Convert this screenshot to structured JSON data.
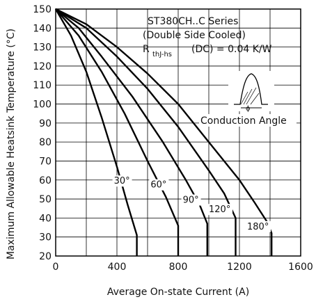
{
  "chart_data": {
    "type": "line",
    "title": "",
    "xlabel": "Average On-state Current (A)",
    "ylabel": "Maximum Allowable Heatsink Temperature (°C)",
    "xlim": [
      0,
      1600
    ],
    "ylim": [
      20,
      150
    ],
    "x_ticks": [
      "0",
      "400",
      "800",
      "1200",
      "1600"
    ],
    "y_ticks": [
      "20",
      "30",
      "40",
      "50",
      "60",
      "70",
      "80",
      "90",
      "100",
      "110",
      "120",
      "130",
      "140",
      "150"
    ],
    "grid": true,
    "annotations": {
      "series_title": "ST380CH..C Series",
      "cooling": "(Double Side Cooled)",
      "resistance_prefix": "R",
      "resistance_sub": "thJ-hs",
      "resistance_value": "(DC) = 0.04 K/W",
      "conduction_label": "Conduction Angle"
    },
    "series": [
      {
        "name": "30°",
        "label_at": [
          380,
          58
        ],
        "points": [
          [
            0,
            150
          ],
          [
            100,
            136
          ],
          [
            200,
            117
          ],
          [
            300,
            93
          ],
          [
            400,
            67
          ],
          [
            470,
            47
          ],
          [
            530,
            31
          ],
          [
            530,
            20
          ]
        ]
      },
      {
        "name": "60°",
        "label_at": [
          620,
          56
        ],
        "points": [
          [
            0,
            150
          ],
          [
            150,
            136
          ],
          [
            300,
            117
          ],
          [
            450,
            95
          ],
          [
            600,
            70
          ],
          [
            720,
            51
          ],
          [
            800,
            36
          ],
          [
            800,
            30
          ],
          [
            800,
            20
          ]
        ]
      },
      {
        "name": "90°",
        "label_at": [
          830,
          48
        ],
        "points": [
          [
            0,
            150
          ],
          [
            150,
            140
          ],
          [
            300,
            125
          ],
          [
            500,
            104
          ],
          [
            700,
            80
          ],
          [
            850,
            60
          ],
          [
            940,
            47
          ],
          [
            990,
            37
          ],
          [
            990,
            20
          ]
        ]
      },
      {
        "name": "120°",
        "label_at": [
          1000,
          43
        ],
        "points": [
          [
            0,
            150
          ],
          [
            200,
            140
          ],
          [
            400,
            125
          ],
          [
            600,
            108
          ],
          [
            800,
            88
          ],
          [
            1000,
            65
          ],
          [
            1100,
            53
          ],
          [
            1175,
            40
          ],
          [
            1175,
            30
          ],
          [
            1175,
            20
          ]
        ]
      },
      {
        "name": "180°",
        "label_at": [
          1250,
          34
        ],
        "points": [
          [
            0,
            150
          ],
          [
            200,
            142
          ],
          [
            400,
            130
          ],
          [
            600,
            116
          ],
          [
            800,
            100
          ],
          [
            1000,
            80
          ],
          [
            1200,
            60
          ],
          [
            1300,
            48
          ],
          [
            1380,
            38
          ],
          [
            1410,
            32
          ],
          [
            1410,
            20
          ]
        ]
      }
    ]
  }
}
